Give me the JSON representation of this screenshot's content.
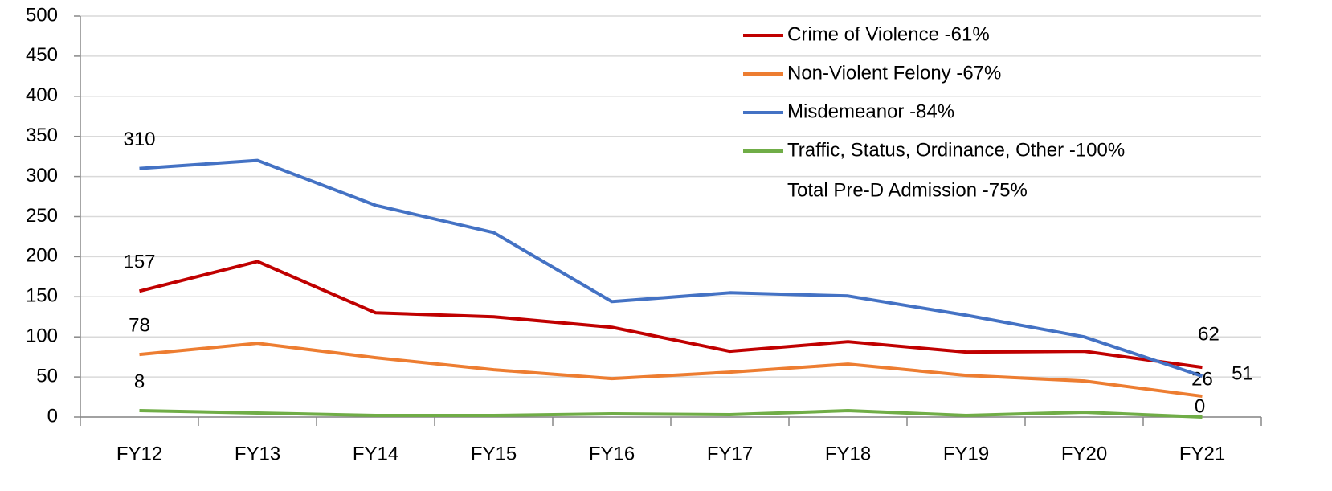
{
  "chart_data": {
    "type": "line",
    "categories": [
      "FY12",
      "FY13",
      "FY14",
      "FY15",
      "FY16",
      "FY17",
      "FY18",
      "FY19",
      "FY20",
      "FY21"
    ],
    "series": [
      {
        "name": "Crime of Violence -61%",
        "color": "#c00000",
        "values": [
          157,
          194,
          130,
          125,
          112,
          82,
          94,
          81,
          82,
          62
        ]
      },
      {
        "name": "Non-Violent Felony -67%",
        "color": "#ed7d31",
        "values": [
          78,
          92,
          74,
          59,
          48,
          56,
          66,
          52,
          45,
          26
        ]
      },
      {
        "name": "Misdemeanor -84%",
        "color": "#4472c4",
        "values": [
          310,
          320,
          264,
          230,
          144,
          155,
          151,
          127,
          100,
          51
        ]
      },
      {
        "name": "Traffic, Status, Ordinance, Other -100%",
        "color": "#70ad47",
        "values": [
          8,
          5,
          2,
          2,
          4,
          3,
          8,
          2,
          6,
          0
        ]
      }
    ],
    "annotations": [
      "Total Pre-D Admission -75%"
    ],
    "ylim": [
      0,
      500
    ],
    "yticks": [
      0,
      50,
      100,
      150,
      200,
      250,
      300,
      350,
      400,
      450,
      500
    ],
    "grid": true
  }
}
